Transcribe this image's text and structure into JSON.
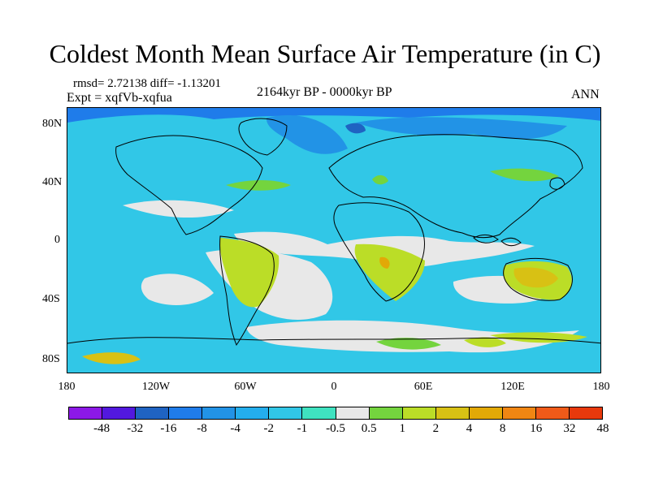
{
  "title": "Coldest Month Mean Surface Air Temperature (in C)",
  "stats": "rmsd= 2.72138 diff= -1.13201",
  "experiment": "Expt = xqfVb-xqfua",
  "period": "2164kyr BP - 0000kyr BP",
  "season": "ANN",
  "y_axis": {
    "labels": [
      "80N",
      "40N",
      "0",
      "40S",
      "80S"
    ]
  },
  "x_axis": {
    "labels": [
      "180",
      "120W",
      "60W",
      "0",
      "60E",
      "120E",
      "180"
    ]
  },
  "colorbar": {
    "colors": [
      "#8c18e7",
      "#5218df",
      "#1f63c2",
      "#1f7cea",
      "#2293e6",
      "#24aeed",
      "#31c7e7",
      "#3fe2c0",
      "#e8e8e8",
      "#74d43e",
      "#bbdd27",
      "#d8c114",
      "#e2a907",
      "#f08613",
      "#f05a19",
      "#e8390c"
    ],
    "labels": [
      "-48",
      "-32",
      "-16",
      "-8",
      "-4",
      "-2",
      "-1",
      "-0.5",
      "0.5",
      "1",
      "2",
      "4",
      "8",
      "16",
      "32",
      "48"
    ]
  }
}
